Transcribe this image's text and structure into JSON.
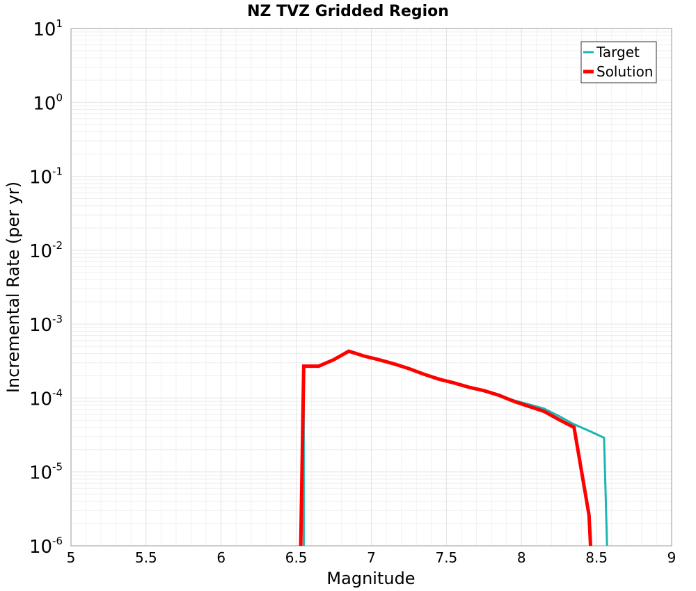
{
  "chart_data": {
    "type": "line",
    "title": "NZ TVZ Gridded Region",
    "xlabel": "Magnitude",
    "ylabel": "Incremental Rate (per yr)",
    "xlim": [
      5,
      9
    ],
    "ylim": [
      1e-06,
      10
    ],
    "yscale": "log",
    "grid": true,
    "legend_position": "top-right",
    "xticks": [
      "5",
      "5.5",
      "6",
      "6.5",
      "7",
      "7.5",
      "8",
      "8.5",
      "9"
    ],
    "yticks": [
      {
        "base": "10",
        "exp": "-6"
      },
      {
        "base": "10",
        "exp": "-5"
      },
      {
        "base": "10",
        "exp": "-4"
      },
      {
        "base": "10",
        "exp": "-3"
      },
      {
        "base": "10",
        "exp": "-2"
      },
      {
        "base": "10",
        "exp": "-1"
      },
      {
        "base": "10",
        "exp": "0"
      },
      {
        "base": "10",
        "exp": "1"
      }
    ],
    "series": [
      {
        "name": "Target",
        "color": "#1bb5b5",
        "x": [
          6.55,
          6.55,
          6.65,
          6.75,
          6.85,
          6.95,
          7.05,
          7.15,
          7.25,
          7.35,
          7.45,
          7.55,
          7.65,
          7.75,
          7.85,
          7.95,
          8.05,
          8.15,
          8.25,
          8.35,
          8.45,
          8.55,
          8.57
        ],
        "y": [
          1e-06,
          0.00027,
          0.00027,
          0.00033,
          0.00043,
          0.00037,
          0.00033,
          0.00029,
          0.00025,
          0.00021,
          0.00018,
          0.00016,
          0.00014,
          0.000126,
          0.000109,
          9.3e-05,
          8.2e-05,
          7.2e-05,
          5.7e-05,
          4.4e-05,
          3.6e-05,
          2.9e-05,
          1e-06
        ]
      },
      {
        "name": "Solution",
        "color": "#ff0000",
        "x": [
          6.53,
          6.55,
          6.65,
          6.75,
          6.85,
          6.95,
          7.05,
          7.15,
          7.25,
          7.35,
          7.45,
          7.55,
          7.65,
          7.75,
          7.85,
          7.95,
          8.05,
          8.15,
          8.25,
          8.35,
          8.45,
          8.46
        ],
        "y": [
          1e-06,
          0.00027,
          0.00027,
          0.00033,
          0.00043,
          0.00037,
          0.00033,
          0.00029,
          0.00025,
          0.00021,
          0.00018,
          0.00016,
          0.00014,
          0.000126,
          0.000109,
          9e-05,
          7.7e-05,
          6.6e-05,
          5.1e-05,
          4e-05,
          2.6e-06,
          1e-06
        ]
      }
    ]
  }
}
